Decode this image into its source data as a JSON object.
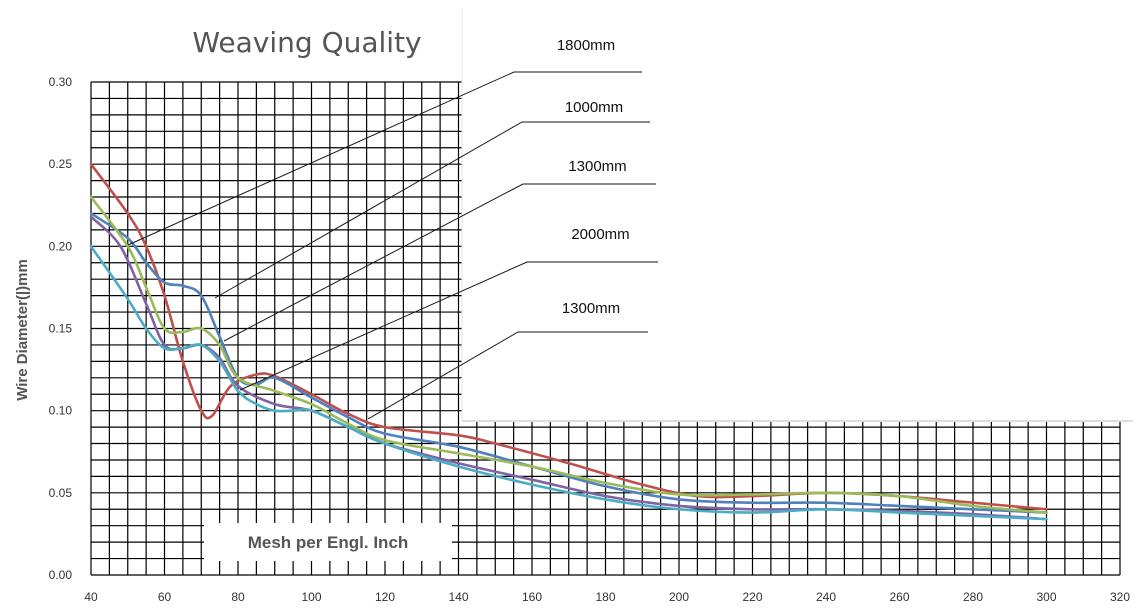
{
  "chart_data": {
    "type": "line",
    "title": "Weaving Quality",
    "xlabel": "Mesh per Engl. Inch",
    "ylabel": "Wire Diameter(|)mm",
    "xlim": [
      40,
      320
    ],
    "ylim": [
      0,
      0.3
    ],
    "x_ticks": [
      "40",
      "60",
      "80",
      "100",
      "120",
      "140",
      "160",
      "180",
      "200",
      "220",
      "240",
      "260",
      "280",
      "300",
      "320"
    ],
    "y_ticks": [
      "0.00",
      "0.05",
      "0.10",
      "0.15",
      "0.20",
      "0.25",
      "0.30"
    ],
    "grid": true,
    "legend_labels": [
      "1800mm",
      "1000mm",
      "1300mm",
      "2000mm",
      "1300mm"
    ],
    "series": [
      {
        "color": "#c0504d",
        "points": [
          [
            40,
            0.25
          ],
          [
            50,
            0.22
          ],
          [
            55,
            0.2
          ],
          [
            60,
            0.17
          ],
          [
            65,
            0.13
          ],
          [
            70,
            0.1
          ],
          [
            73,
            0.097
          ],
          [
            78,
            0.115
          ],
          [
            85,
            0.122
          ],
          [
            90,
            0.121
          ],
          [
            100,
            0.11
          ],
          [
            110,
            0.098
          ],
          [
            120,
            0.09
          ],
          [
            140,
            0.085
          ],
          [
            150,
            0.08
          ],
          [
            170,
            0.068
          ],
          [
            190,
            0.055
          ],
          [
            205,
            0.048
          ],
          [
            220,
            0.048
          ],
          [
            240,
            0.05
          ],
          [
            260,
            0.048
          ],
          [
            280,
            0.044
          ],
          [
            300,
            0.04
          ]
        ]
      },
      {
        "color": "#4f81bd",
        "points": [
          [
            40,
            0.22
          ],
          [
            50,
            0.205
          ],
          [
            55,
            0.19
          ],
          [
            60,
            0.178
          ],
          [
            65,
            0.176
          ],
          [
            70,
            0.17
          ],
          [
            75,
            0.145
          ],
          [
            80,
            0.12
          ],
          [
            85,
            0.116
          ],
          [
            90,
            0.12
          ],
          [
            100,
            0.108
          ],
          [
            110,
            0.096
          ],
          [
            120,
            0.086
          ],
          [
            140,
            0.078
          ],
          [
            160,
            0.066
          ],
          [
            180,
            0.054
          ],
          [
            200,
            0.046
          ],
          [
            220,
            0.044
          ],
          [
            240,
            0.044
          ],
          [
            260,
            0.042
          ],
          [
            280,
            0.04
          ],
          [
            300,
            0.038
          ]
        ]
      },
      {
        "color": "#9bbb59",
        "points": [
          [
            40,
            0.23
          ],
          [
            50,
            0.2
          ],
          [
            55,
            0.175
          ],
          [
            60,
            0.15
          ],
          [
            65,
            0.148
          ],
          [
            70,
            0.15
          ],
          [
            75,
            0.14
          ],
          [
            80,
            0.12
          ],
          [
            90,
            0.112
          ],
          [
            100,
            0.104
          ],
          [
            110,
            0.092
          ],
          [
            120,
            0.082
          ],
          [
            140,
            0.074
          ],
          [
            160,
            0.066
          ],
          [
            180,
            0.056
          ],
          [
            200,
            0.049
          ],
          [
            220,
            0.049
          ],
          [
            240,
            0.05
          ],
          [
            260,
            0.048
          ],
          [
            280,
            0.042
          ],
          [
            300,
            0.038
          ]
        ]
      },
      {
        "color": "#8064a2",
        "points": [
          [
            40,
            0.218
          ],
          [
            48,
            0.2
          ],
          [
            55,
            0.165
          ],
          [
            60,
            0.14
          ],
          [
            65,
            0.138
          ],
          [
            70,
            0.14
          ],
          [
            75,
            0.132
          ],
          [
            80,
            0.115
          ],
          [
            90,
            0.104
          ],
          [
            100,
            0.1
          ],
          [
            110,
            0.09
          ],
          [
            120,
            0.08
          ],
          [
            140,
            0.068
          ],
          [
            160,
            0.058
          ],
          [
            180,
            0.048
          ],
          [
            200,
            0.042
          ],
          [
            220,
            0.04
          ],
          [
            240,
            0.04
          ],
          [
            260,
            0.039
          ],
          [
            280,
            0.037
          ],
          [
            300,
            0.034
          ]
        ]
      },
      {
        "color": "#4bacc6",
        "points": [
          [
            40,
            0.2
          ],
          [
            50,
            0.168
          ],
          [
            55,
            0.15
          ],
          [
            60,
            0.138
          ],
          [
            65,
            0.138
          ],
          [
            70,
            0.14
          ],
          [
            75,
            0.13
          ],
          [
            80,
            0.112
          ],
          [
            85,
            0.104
          ],
          [
            90,
            0.1
          ],
          [
            95,
            0.1
          ],
          [
            100,
            0.1
          ],
          [
            110,
            0.09
          ],
          [
            120,
            0.08
          ],
          [
            140,
            0.066
          ],
          [
            160,
            0.055
          ],
          [
            180,
            0.046
          ],
          [
            200,
            0.04
          ],
          [
            220,
            0.038
          ],
          [
            240,
            0.04
          ],
          [
            260,
            0.038
          ],
          [
            280,
            0.036
          ],
          [
            300,
            0.034
          ]
        ]
      }
    ]
  }
}
